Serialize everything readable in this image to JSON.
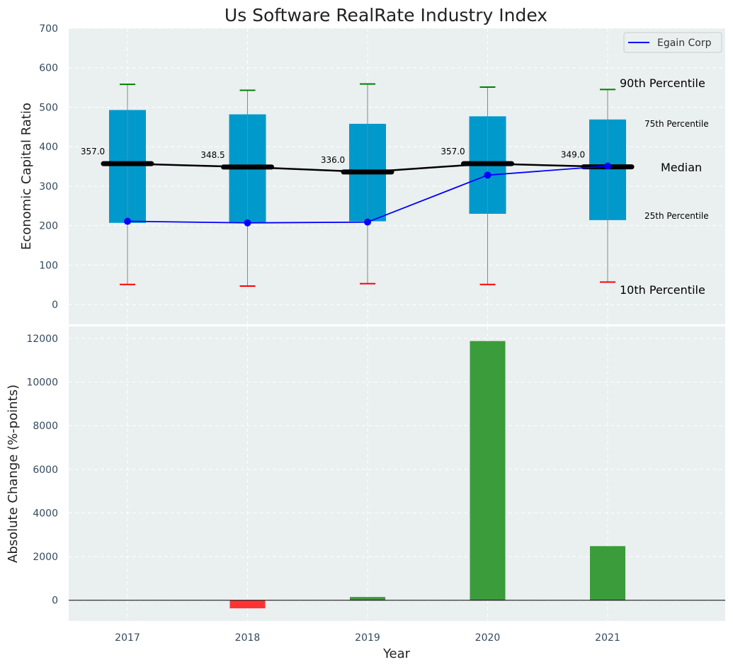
{
  "chart_data": [
    {
      "type": "box",
      "title": "Us Software RealRate Industry Index",
      "ylabel": "Economic Capital Ratio",
      "ylim": [
        -50,
        700
      ],
      "yticks": [
        0,
        100,
        200,
        300,
        400,
        500,
        600,
        700
      ],
      "categories": [
        "2017",
        "2018",
        "2019",
        "2020",
        "2021"
      ],
      "percentile_90": [
        558,
        543,
        559,
        551,
        545
      ],
      "percentile_75": [
        493,
        482,
        458,
        477,
        469
      ],
      "median": [
        357.0,
        348.5,
        336.0,
        357.0,
        349.0
      ],
      "median_labels": [
        "357.0",
        "348.5",
        "336.0",
        "357.0",
        "349.0"
      ],
      "percentile_25": [
        207,
        208,
        211,
        230,
        214
      ],
      "percentile_10": [
        51,
        47,
        53,
        51,
        57
      ],
      "series": [
        {
          "name": "Egain Corp",
          "values": [
            211,
            207,
            209,
            328,
            351
          ]
        }
      ],
      "annotations": {
        "p90": "90th Percentile",
        "p75": "75th Percentile",
        "median": "Median",
        "p25": "25th Percentile",
        "p10": "10th Percentile"
      },
      "legend": "top-right",
      "grid": true
    },
    {
      "type": "bar",
      "xlabel": "Year",
      "ylabel": "Absolute Change (%-points)",
      "ylim": [
        -950,
        12550
      ],
      "yticks": [
        0,
        2000,
        4000,
        6000,
        8000,
        10000,
        12000
      ],
      "categories": [
        "2017",
        "2018",
        "2019",
        "2020",
        "2021"
      ],
      "values": [
        0,
        -370,
        150,
        11880,
        2480
      ],
      "grid": true
    }
  ],
  "colors": {
    "background": "#eaeff0",
    "box": "#0099cc",
    "median": "#000000",
    "series": "#0000ff",
    "whisker": "#888888",
    "cap_top": "#008000",
    "cap_bottom": "#ff0000",
    "bar_positive": "#3a9c3a",
    "bar_negative": "#ff3333",
    "annot_percentile": "#0099cc"
  }
}
